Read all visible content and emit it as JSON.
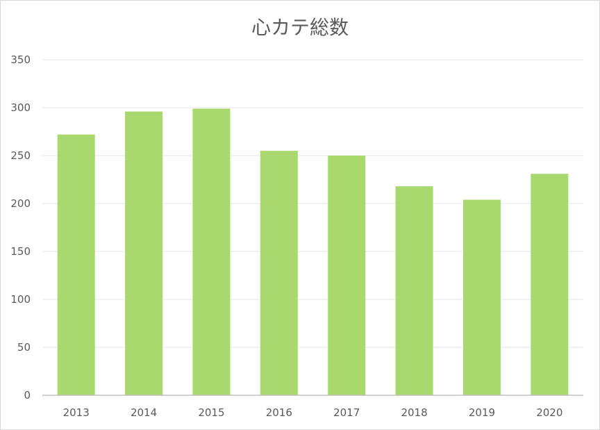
{
  "chart_data": {
    "type": "bar",
    "title": "心カテ総数",
    "categories": [
      "2013",
      "2014",
      "2015",
      "2016",
      "2017",
      "2018",
      "2019",
      "2020"
    ],
    "values": [
      272,
      296,
      299,
      255,
      250,
      218,
      204,
      231
    ],
    "ylim": [
      0,
      350
    ],
    "yticks": [
      "0",
      "50",
      "100",
      "150",
      "200",
      "250",
      "300",
      "350"
    ],
    "xlabel": "",
    "ylabel": "",
    "grid": true,
    "legend": "none",
    "colors": {
      "bar": "#a9d86e",
      "grid": "#e6e6e6",
      "axis": "#bfbfbf",
      "text": "#595959"
    }
  }
}
